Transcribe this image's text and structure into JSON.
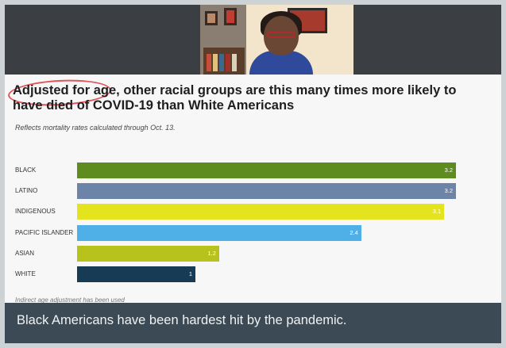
{
  "slide": {
    "headline": "Adjusted for age, other racial groups are this many times more likely to have died of COVID-19 than White Americans",
    "subhead": "Reflects mortality rates calculated through Oct. 13.",
    "footnote": "Indirect age adjustment has been used"
  },
  "caption": {
    "text": "Black Americans have been hardest hit by the pandemic."
  },
  "colors": {
    "slide_bg": "#f7f7f7",
    "caption_bg": "#3b4a54",
    "annotation_circle": "#e0565b"
  },
  "chart_data": {
    "type": "bar",
    "orientation": "horizontal",
    "categories": [
      "BLACK",
      "LATINO",
      "INDIGENOUS",
      "PACIFIC ISLANDER",
      "ASIAN",
      "WHITE"
    ],
    "values": [
      3.2,
      3.2,
      3.1,
      2.4,
      1.2,
      1
    ],
    "value_labels": [
      "3.2",
      "3.2",
      "3.1",
      "2.4",
      "1.2",
      "1"
    ],
    "colors": [
      "#5e8c1f",
      "#6b84a8",
      "#e4e41e",
      "#4fb0e8",
      "#b8c21c",
      "#173a55"
    ],
    "xlim": [
      0,
      3.3
    ],
    "title": "Adjusted for age, other racial groups are this many times more likely to have died of COVID-19 than White Americans",
    "xlabel": "",
    "ylabel": "",
    "grid": false,
    "legend": "none"
  }
}
